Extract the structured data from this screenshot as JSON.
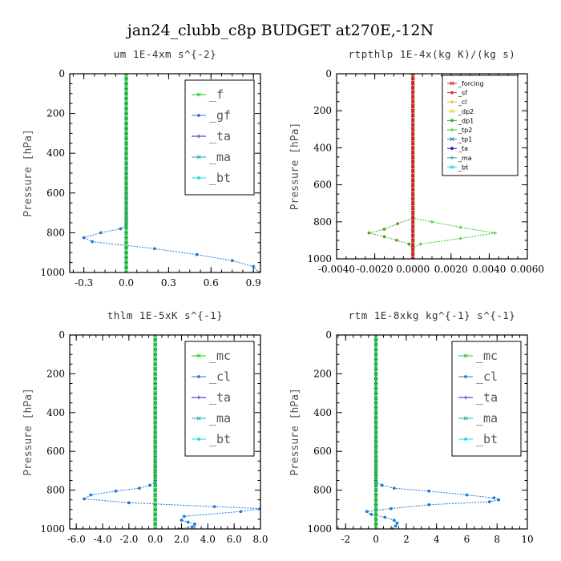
{
  "title": "jan24_clubb_c8p  BUDGET at270E,-12N",
  "chart_data": [
    {
      "type": "line",
      "title": "um   1E-4xm s^{-2}",
      "ylabel": "Pressure [hPa]",
      "xlim": [
        -0.4,
        0.95
      ],
      "ylim": [
        1000,
        0
      ],
      "xticks": [
        "-0.3",
        "0.0",
        "0.3",
        "0.6",
        "0.9"
      ],
      "xtick_values": [
        -0.3,
        0,
        0.3,
        0.6,
        0.9
      ],
      "yticks": [
        "0",
        "200",
        "400",
        "600",
        "800",
        "1000"
      ],
      "legend_style": "large",
      "series": [
        {
          "name": "_f",
          "color": "#22cc22",
          "x": [
            0,
            0
          ],
          "y": [
            0,
            1000
          ]
        },
        {
          "name": "_gf",
          "color": "#1e7ad8",
          "x": [
            0,
            0,
            -0.04,
            -0.18,
            -0.3,
            -0.24,
            0.2,
            0.5,
            0.75,
            0.9,
            0.94
          ],
          "y": [
            0,
            760,
            780,
            800,
            825,
            845,
            880,
            910,
            940,
            970,
            1000
          ]
        },
        {
          "name": "_ta",
          "color": "#2222bb",
          "x": [
            0,
            0
          ],
          "y": [
            0,
            1000
          ]
        },
        {
          "name": "_ma",
          "color": "#22aaaa",
          "x": [
            0,
            0
          ],
          "y": [
            0,
            1000
          ]
        },
        {
          "name": "_bt",
          "color": "#11dddd",
          "x": [
            0,
            0
          ],
          "y": [
            0,
            1000
          ]
        }
      ]
    },
    {
      "type": "line",
      "title": "rtpthlp   1E-4x(kg K)/(kg s)",
      "ylabel": "Pressure [hPa]",
      "xlim": [
        -0.004,
        0.006
      ],
      "ylim": [
        1000,
        0
      ],
      "xticks": [
        "-0.0040",
        "-0.0020",
        "0.0000",
        "0.0020",
        "0.0040",
        "0.0060"
      ],
      "xtick_values": [
        -0.004,
        -0.002,
        0,
        0.002,
        0.004,
        0.006
      ],
      "yticks": [
        "0",
        "200",
        "400",
        "600",
        "800",
        "1000"
      ],
      "legend_style": "small",
      "series": [
        {
          "name": "_forcing",
          "color": "#cc2222",
          "x": [
            0,
            0
          ],
          "y": [
            0,
            1000
          ]
        },
        {
          "name": "_sf",
          "color": "#dd3333",
          "x": [
            0,
            0
          ],
          "y": [
            0,
            1000
          ]
        },
        {
          "name": "_cl",
          "color": "#eeaa22",
          "x": [
            0,
            0
          ],
          "y": [
            0,
            1000
          ]
        },
        {
          "name": "_dp2",
          "color": "#dddd22",
          "x": [
            0,
            0
          ],
          "y": [
            0,
            1000
          ]
        },
        {
          "name": "_dp1",
          "color": "#44aa22",
          "x": [
            0,
            0,
            -0.0008,
            -0.0015,
            -0.0023,
            -0.0015,
            -0.0002,
            0,
            0
          ],
          "y": [
            0,
            780,
            810,
            840,
            860,
            880,
            920,
            950,
            1000
          ]
        },
        {
          "name": "_tp2",
          "color": "#22cc22",
          "x": [
            0,
            0,
            0.001,
            0.0025,
            0.0043,
            0.0025,
            0.0004,
            0,
            0
          ],
          "y": [
            0,
            780,
            800,
            830,
            860,
            890,
            920,
            940,
            1000
          ]
        },
        {
          "name": "_tp1",
          "color": "#1e7ad8",
          "x": [
            0,
            0
          ],
          "y": [
            0,
            1000
          ]
        },
        {
          "name": "_ta",
          "color": "#2222bb",
          "x": [
            0,
            0
          ],
          "y": [
            0,
            1000
          ]
        },
        {
          "name": "_ma",
          "color": "#22aaaa",
          "x": [
            0,
            0
          ],
          "y": [
            0,
            1000
          ]
        },
        {
          "name": "_bt",
          "color": "#11dddd",
          "x": [
            0,
            0
          ],
          "y": [
            0,
            1000
          ]
        }
      ]
    },
    {
      "type": "line",
      "title": "thlm   1E-5xK s^{-1}",
      "ylabel": "Pressure [hPa]",
      "xlim": [
        -6.5,
        8
      ],
      "ylim": [
        1000,
        0
      ],
      "xticks": [
        "-6.0",
        "-4.0",
        "-2.0",
        "0.0",
        "2.0",
        "4.0",
        "6.0",
        "8.0"
      ],
      "xtick_values": [
        -6,
        -4,
        -2,
        0,
        2,
        4,
        6,
        8
      ],
      "yticks": [
        "0",
        "200",
        "400",
        "600",
        "800",
        "1000"
      ],
      "legend_style": "large",
      "series": [
        {
          "name": "_mc",
          "color": "#22cc22",
          "x": [
            0,
            0
          ],
          "y": [
            0,
            1000
          ]
        },
        {
          "name": "_cl",
          "color": "#1e7ad8",
          "x": [
            0,
            0,
            -0.4,
            -1.2,
            -3.0,
            -4.9,
            -5.4,
            -2.0,
            4.5,
            8.0,
            6.5,
            2.2,
            2.0,
            2.5,
            3.0,
            2.8,
            1.8
          ],
          "y": [
            0,
            760,
            775,
            790,
            805,
            825,
            845,
            865,
            885,
            895,
            910,
            935,
            955,
            965,
            975,
            990,
            1000
          ]
        },
        {
          "name": "_ta",
          "color": "#2222bb",
          "x": [
            0,
            0
          ],
          "y": [
            0,
            1000
          ]
        },
        {
          "name": "_ma",
          "color": "#22aaaa",
          "x": [
            0,
            0
          ],
          "y": [
            0,
            1000
          ]
        },
        {
          "name": "_bt",
          "color": "#11dddd",
          "x": [
            0,
            0
          ],
          "y": [
            0,
            1000
          ]
        }
      ]
    },
    {
      "type": "line",
      "title": "rtm   1E-8xkg kg^{-1} s^{-1}",
      "ylabel": "Pressure [hPa]",
      "xlim": [
        -2.6,
        10
      ],
      "ylim": [
        1000,
        0
      ],
      "xticks": [
        "-2",
        "0",
        "2",
        "4",
        "6",
        "8",
        "10"
      ],
      "xtick_values": [
        -2,
        0,
        2,
        4,
        6,
        8,
        10
      ],
      "yticks": [
        "0",
        "200",
        "400",
        "600",
        "800",
        "1000"
      ],
      "legend_style": "large",
      "series": [
        {
          "name": "_mc",
          "color": "#22cc22",
          "x": [
            0,
            0
          ],
          "y": [
            0,
            1000
          ]
        },
        {
          "name": "_cl",
          "color": "#1e7ad8",
          "x": [
            0,
            0,
            0.4,
            1.2,
            3.5,
            6.0,
            7.8,
            8.1,
            7.5,
            3.5,
            1.0,
            -0.6,
            -0.3,
            0.6,
            1.2,
            1.4,
            1.3,
            1.1
          ],
          "y": [
            0,
            760,
            775,
            790,
            805,
            825,
            840,
            850,
            860,
            875,
            895,
            910,
            925,
            940,
            955,
            970,
            985,
            1000
          ]
        },
        {
          "name": "_ta",
          "color": "#2222bb",
          "x": [
            0,
            0
          ],
          "y": [
            0,
            1000
          ]
        },
        {
          "name": "_ma",
          "color": "#22aaaa",
          "x": [
            0,
            0
          ],
          "y": [
            0,
            1000
          ]
        },
        {
          "name": "_bt",
          "color": "#11dddd",
          "x": [
            0,
            0
          ],
          "y": [
            0,
            1000
          ]
        }
      ]
    }
  ]
}
